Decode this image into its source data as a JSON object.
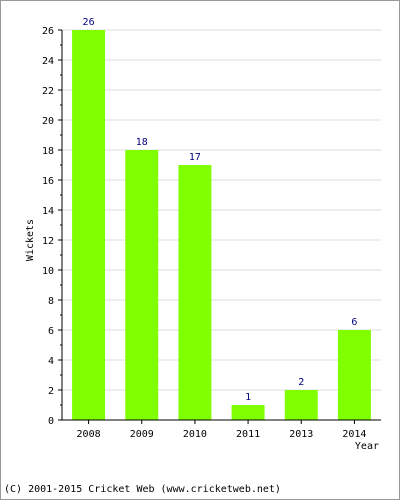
{
  "chart_data": {
    "type": "bar",
    "categories": [
      "2008",
      "2009",
      "2010",
      "2011",
      "2013",
      "2014"
    ],
    "values": [
      26,
      18,
      17,
      1,
      2,
      6
    ],
    "data_labels": [
      "26",
      "18",
      "17",
      "1",
      "2",
      "6"
    ],
    "xlabel": "Year",
    "ylabel": "Wickets",
    "ylim": [
      0,
      26
    ],
    "y_ticks": [
      0,
      2,
      4,
      6,
      8,
      10,
      12,
      14,
      16,
      18,
      20,
      22,
      24,
      26
    ],
    "y_tick_labels": [
      "0",
      "2",
      "4",
      "6",
      "8",
      "10",
      "12",
      "14",
      "16",
      "18",
      "20",
      "22",
      "24",
      "26"
    ],
    "grid": true,
    "bar_color": "#80ff00",
    "data_label_color": "#000080"
  },
  "footer": {
    "copyright": "(C) 2001-2015 Cricket Web (www.cricketweb.net)"
  }
}
